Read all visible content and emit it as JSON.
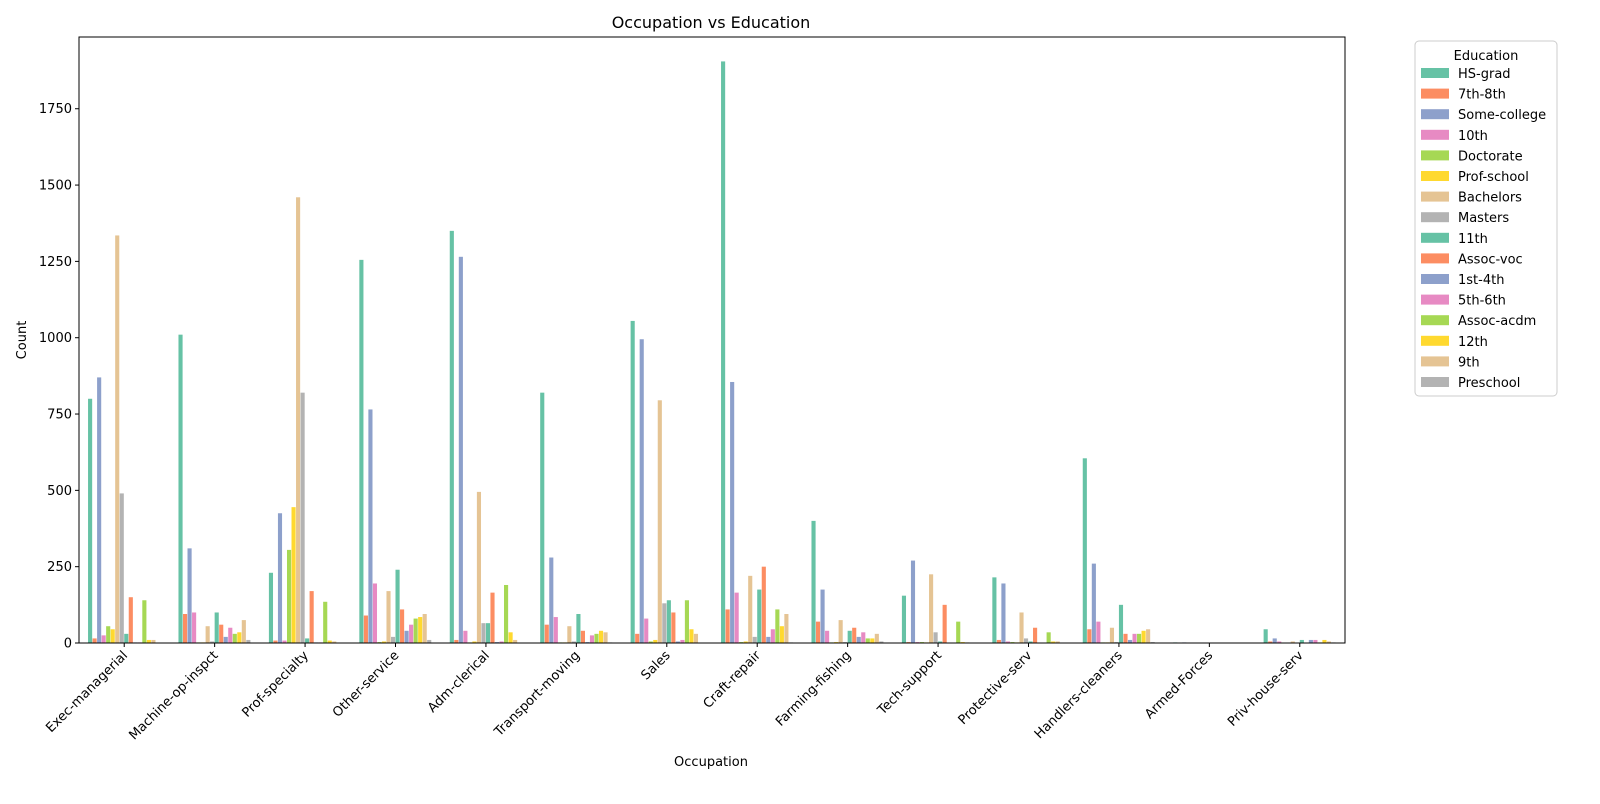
{
  "chart_data": {
    "type": "bar",
    "title": "Occupation vs Education",
    "xlabel": "Occupation",
    "ylabel": "Count",
    "ylim": [
      0,
      1985
    ],
    "yticks": [
      0,
      250,
      500,
      750,
      1000,
      1250,
      1500,
      1750
    ],
    "grid": false,
    "legend_title": "Education",
    "legend_position": "outside-top-right",
    "categories": [
      "Exec-managerial",
      "Machine-op-inspct",
      "Prof-specialty",
      "Other-service",
      "Adm-clerical",
      "Transport-moving",
      "Sales",
      "Craft-repair",
      "Farming-fishing",
      "Tech-support",
      "Protective-serv",
      "Handlers-cleaners",
      "Armed-Forces",
      "Priv-house-serv"
    ],
    "series": [
      {
        "name": "HS-grad",
        "color": "#66c2a5",
        "values": [
          800,
          1010,
          230,
          1255,
          1350,
          820,
          1055,
          1905,
          400,
          155,
          215,
          605,
          2,
          45
        ]
      },
      {
        "name": "7th-8th",
        "color": "#fc8d62",
        "values": [
          15,
          95,
          8,
          90,
          10,
          60,
          30,
          110,
          70,
          3,
          10,
          45,
          0,
          5
        ]
      },
      {
        "name": "Some-college",
        "color": "#8da0cb",
        "values": [
          870,
          310,
          425,
          765,
          1265,
          280,
          995,
          855,
          175,
          270,
          195,
          260,
          2,
          15
        ]
      },
      {
        "name": "10th",
        "color": "#e78ac3",
        "values": [
          25,
          100,
          8,
          195,
          40,
          85,
          80,
          165,
          40,
          3,
          5,
          70,
          0,
          5
        ]
      },
      {
        "name": "Doctorate",
        "color": "#a6d854",
        "values": [
          55,
          2,
          305,
          3,
          2,
          2,
          5,
          3,
          2,
          3,
          3,
          2,
          0,
          0
        ]
      },
      {
        "name": "Prof-school",
        "color": "#ffd92f",
        "values": [
          45,
          2,
          445,
          5,
          5,
          2,
          10,
          5,
          3,
          2,
          2,
          2,
          0,
          0
        ]
      },
      {
        "name": "Bachelors",
        "color": "#e5c494",
        "values": [
          1335,
          55,
          1460,
          170,
          495,
          55,
          795,
          220,
          75,
          225,
          100,
          50,
          0,
          5
        ]
      },
      {
        "name": "Masters",
        "color": "#b3b3b3",
        "values": [
          490,
          5,
          820,
          20,
          65,
          5,
          130,
          20,
          3,
          35,
          15,
          3,
          0,
          0
        ]
      },
      {
        "name": "11th",
        "color": "#66c2a5",
        "values": [
          30,
          100,
          15,
          240,
          65,
          95,
          140,
          175,
          40,
          5,
          5,
          125,
          0,
          10
        ]
      },
      {
        "name": "Assoc-voc",
        "color": "#fc8d62",
        "values": [
          150,
          60,
          170,
          110,
          165,
          40,
          100,
          250,
          50,
          125,
          50,
          30,
          1,
          1
        ]
      },
      {
        "name": "1st-4th",
        "color": "#8da0cb",
        "values": [
          2,
          20,
          2,
          40,
          3,
          3,
          5,
          20,
          20,
          1,
          1,
          10,
          0,
          10
        ]
      },
      {
        "name": "5th-6th",
        "color": "#e78ac3",
        "values": [
          2,
          50,
          2,
          60,
          5,
          25,
          10,
          45,
          35,
          1,
          1,
          30,
          0,
          10
        ]
      },
      {
        "name": "Assoc-acdm",
        "color": "#a6d854",
        "values": [
          140,
          30,
          135,
          80,
          190,
          30,
          140,
          110,
          15,
          70,
          35,
          30,
          0,
          2
        ]
      },
      {
        "name": "12th",
        "color": "#ffd92f",
        "values": [
          10,
          35,
          8,
          85,
          35,
          40,
          45,
          55,
          15,
          3,
          5,
          40,
          0,
          10
        ]
      },
      {
        "name": "9th",
        "color": "#e5c494",
        "values": [
          10,
          75,
          5,
          95,
          10,
          35,
          30,
          95,
          30,
          2,
          5,
          45,
          0,
          5
        ]
      },
      {
        "name": "Preschool",
        "color": "#b3b3b3",
        "values": [
          0,
          10,
          0,
          10,
          0,
          2,
          0,
          2,
          5,
          0,
          0,
          3,
          0,
          2
        ]
      }
    ]
  }
}
